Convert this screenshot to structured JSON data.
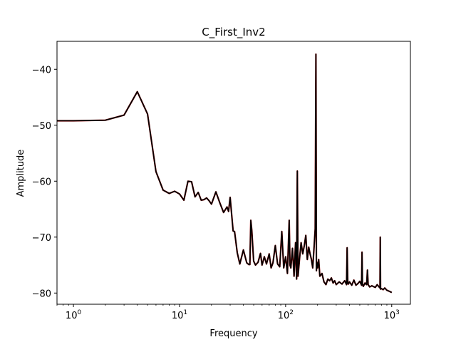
{
  "chart_data": {
    "type": "line",
    "title": "C_First_Inv2",
    "xlabel": "Frequency",
    "ylabel": "Amplitude",
    "xscale": "log",
    "xlim": [
      0.7,
      1500
    ],
    "ylim": [
      -82,
      -35
    ],
    "grid": false,
    "line_color": "#000000",
    "under_color": "#8b0000",
    "x_ticks": [
      {
        "value": 1,
        "base": "10",
        "exp": "0"
      },
      {
        "value": 10,
        "base": "10",
        "exp": "1"
      },
      {
        "value": 100,
        "base": "10",
        "exp": "2"
      },
      {
        "value": 1000,
        "base": "10",
        "exp": "3"
      }
    ],
    "y_ticks": [
      {
        "value": -40,
        "label": "−40"
      },
      {
        "value": -50,
        "label": "−50"
      },
      {
        "value": -60,
        "label": "−60"
      },
      {
        "value": -70,
        "label": "−70"
      },
      {
        "value": -80,
        "label": "−80"
      }
    ],
    "series": [
      {
        "x": [
          0.7,
          1,
          2,
          3,
          4,
          5,
          6,
          7,
          8,
          9,
          10,
          11,
          12,
          13,
          14,
          15,
          16,
          17,
          18,
          19,
          20,
          22,
          24,
          26,
          28,
          29,
          30,
          32,
          33,
          35,
          37,
          40,
          43,
          45,
          46,
          47,
          48,
          50,
          52,
          55,
          58,
          60,
          63,
          66,
          70,
          73,
          76,
          80,
          84,
          88,
          92,
          96,
          100,
          104,
          108,
          110,
          112,
          116,
          120,
          124,
          127,
          129,
          131,
          135,
          140,
          145,
          150,
          155,
          160,
          165,
          170,
          175,
          180,
          185,
          190,
          193,
          195,
          197,
          200,
          205,
          210,
          220,
          230,
          240,
          250,
          260,
          270,
          280,
          290,
          300,
          320,
          340,
          360,
          375,
          380,
          385,
          390,
          400,
          420,
          440,
          460,
          480,
          500,
          520,
          525,
          530,
          540,
          560,
          580,
          590,
          600,
          620,
          650,
          700,
          730,
          760,
          775,
          780,
          785,
          800,
          830,
          860,
          900,
          950,
          1000
        ],
        "y": [
          -49.2,
          -49.2,
          -49.1,
          -48.2,
          -44.0,
          -48.0,
          -58.3,
          -61.6,
          -62.2,
          -61.8,
          -62.3,
          -63.4,
          -60.0,
          -60.1,
          -62.8,
          -62.0,
          -63.4,
          -63.3,
          -63.0,
          -63.5,
          -64.1,
          -61.9,
          -63.9,
          -65.6,
          -64.6,
          -65.4,
          -62.9,
          -68.9,
          -69.0,
          -72.8,
          -74.8,
          -72.3,
          -74.6,
          -74.9,
          -74.9,
          -67.0,
          -68.8,
          -74.3,
          -75.0,
          -74.5,
          -72.9,
          -75.0,
          -73.5,
          -74.8,
          -73.0,
          -75.5,
          -74.6,
          -71.5,
          -74.8,
          -75.3,
          -69.0,
          -75.5,
          -73.5,
          -76.5,
          -67.0,
          -75.0,
          -75.5,
          -72.0,
          -77.0,
          -71.0,
          -77.5,
          -58.2,
          -77.0,
          -74.0,
          -71.0,
          -73.0,
          -71.5,
          -69.7,
          -74.0,
          -71.8,
          -73.0,
          -74.0,
          -75.5,
          -72.0,
          -68.5,
          -37.3,
          -76.0,
          -74.5,
          -75.5,
          -74.0,
          -77.0,
          -76.5,
          -78.0,
          -78.5,
          -77.5,
          -77.8,
          -77.3,
          -78.2,
          -77.8,
          -78.5,
          -78.0,
          -78.4,
          -77.8,
          -78.5,
          -71.9,
          -78.3,
          -78.4,
          -78.0,
          -78.6,
          -77.7,
          -78.6,
          -78.3,
          -77.9,
          -78.6,
          -72.7,
          -78.4,
          -78.8,
          -78.2,
          -78.5,
          -75.9,
          -78.5,
          -78.9,
          -78.7,
          -79.0,
          -78.5,
          -78.9,
          -79.1,
          -70.0,
          -79.3,
          -79.2,
          -79.4,
          -79.1,
          -79.5,
          -79.7,
          -79.9
        ]
      }
    ]
  }
}
